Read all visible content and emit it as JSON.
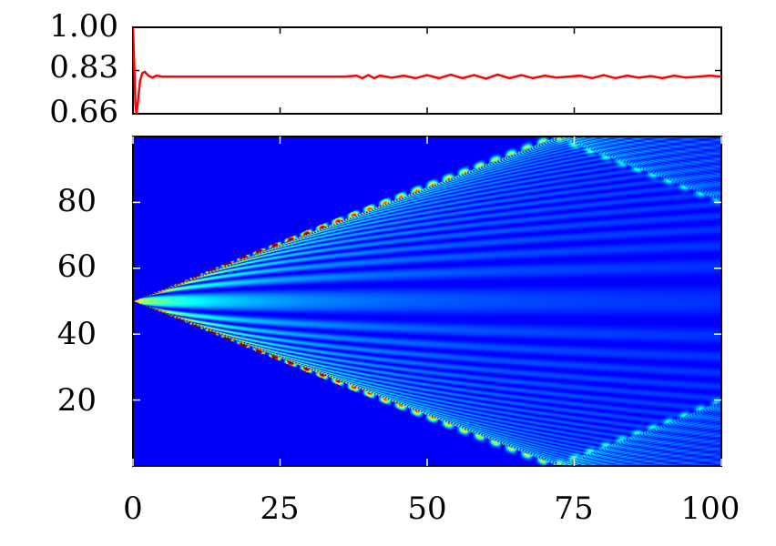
{
  "chart_data": [
    {
      "type": "line",
      "title": "",
      "xlabel": "",
      "ylabel": "",
      "xlim": [
        0,
        100
      ],
      "ylim": [
        0.66,
        1.0
      ],
      "yticks": [
        "1.00",
        "0.83",
        "0.66"
      ],
      "grid": false,
      "series": [
        {
          "color": "#ff0000",
          "x": [
            0,
            0.2,
            0.4,
            0.6,
            0.9,
            1.2,
            1.6,
            2.0,
            2.6,
            3.3,
            4.0,
            5,
            7,
            10,
            20,
            30,
            36,
            38,
            39,
            40,
            41,
            42,
            44,
            46,
            48,
            50,
            52,
            54,
            56,
            58,
            60,
            62,
            64,
            66,
            68,
            70,
            72,
            74,
            76,
            78,
            80,
            82,
            84,
            86,
            88,
            90,
            92,
            94,
            96,
            98,
            100
          ],
          "values": [
            1.0,
            0.86,
            0.7,
            0.66,
            0.72,
            0.79,
            0.82,
            0.825,
            0.81,
            0.802,
            0.81,
            0.806,
            0.806,
            0.806,
            0.806,
            0.806,
            0.806,
            0.81,
            0.8,
            0.812,
            0.8,
            0.81,
            0.802,
            0.81,
            0.8,
            0.812,
            0.8,
            0.814,
            0.8,
            0.812,
            0.798,
            0.814,
            0.8,
            0.812,
            0.8,
            0.81,
            0.802,
            0.806,
            0.81,
            0.8,
            0.812,
            0.8,
            0.81,
            0.802,
            0.808,
            0.8,
            0.81,
            0.802,
            0.806,
            0.81,
            0.806
          ]
        }
      ]
    },
    {
      "type": "heatmap",
      "title": "",
      "xlabel": "",
      "ylabel": "",
      "xlim": [
        0,
        100
      ],
      "ylim": [
        0,
        100
      ],
      "xticks": [
        "0",
        "25",
        "50",
        "75",
        "100"
      ],
      "yticks": [
        "20",
        "40",
        "60",
        "80"
      ],
      "colormap": "jet",
      "source_site": 50,
      "wavefront_reaches_boundary_at_t": 72,
      "description_values": {
        "background_color": "#00007f",
        "peak_color": "#ffff00"
      }
    }
  ]
}
